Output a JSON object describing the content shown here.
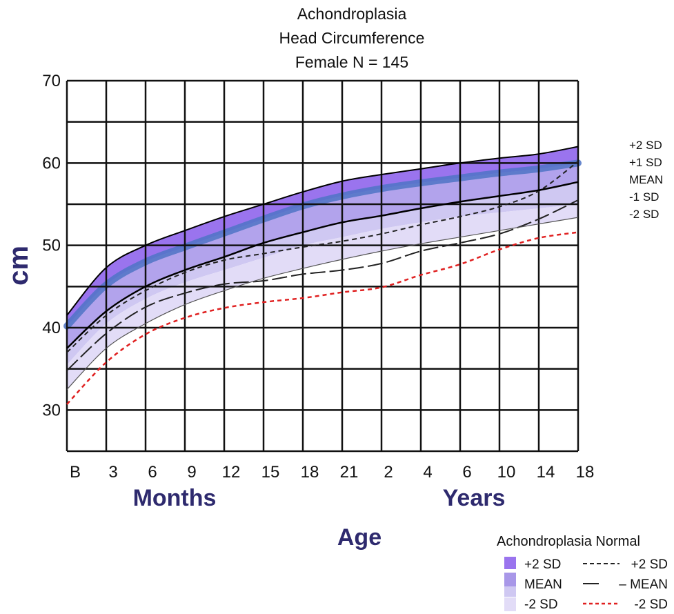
{
  "chart_data": {
    "type": "line",
    "title": [
      "Achondroplasia",
      "Head Circumference",
      "Female N = 145"
    ],
    "ylabel": "cm",
    "xlabel": "Age",
    "x_group_labels": [
      "Months",
      "Years"
    ],
    "x": [
      "B",
      "3",
      "6",
      "9",
      "12",
      "15",
      "18",
      "21",
      "2",
      "4",
      "6",
      "10",
      "14",
      "18"
    ],
    "yticks": [
      30,
      40,
      50,
      60,
      70
    ],
    "ylim": [
      25,
      70
    ],
    "grid": true,
    "curve_labels": [
      "+2 SD",
      "+1 SD",
      "MEAN",
      "-1 SD",
      "-2 SD"
    ],
    "achondroplasia_series": [
      {
        "name": "+2 SD",
        "values": [
          41.5,
          47.3,
          50.0,
          51.8,
          53.5,
          55.0,
          56.5,
          57.8,
          58.6,
          59.3,
          60.0,
          60.6,
          61.1,
          62.0
        ]
      },
      {
        "name": "+1 SD",
        "values": [
          40.2,
          45.2,
          48.0,
          49.8,
          51.5,
          53.2,
          54.8,
          56.0,
          56.9,
          57.6,
          58.2,
          58.8,
          59.3,
          60.0
        ]
      },
      {
        "name": "MEAN",
        "values": [
          37.5,
          42.0,
          45.0,
          47.0,
          48.6,
          50.3,
          51.6,
          52.8,
          53.6,
          54.5,
          55.3,
          56.0,
          56.7,
          57.7
        ]
      },
      {
        "name": "-1 SD",
        "values": [
          35.5,
          40.5,
          43.5,
          45.5,
          47.0,
          48.5,
          50.0,
          51.0,
          52.0,
          52.8,
          53.5,
          54.0,
          54.5,
          55.0
        ]
      },
      {
        "name": "-2 SD",
        "values": [
          32.5,
          37.5,
          40.5,
          42.8,
          44.5,
          46.0,
          47.2,
          48.3,
          49.3,
          50.2,
          51.0,
          51.8,
          52.6,
          53.4
        ]
      }
    ],
    "normal_series": [
      {
        "name": "+2 SD",
        "values": [
          37.0,
          41.5,
          44.5,
          46.7,
          48.2,
          49.0,
          49.8,
          50.5,
          51.4,
          52.5,
          53.5,
          54.7,
          56.6,
          60.2
        ]
      },
      {
        "name": "MEAN",
        "values": [
          34.8,
          39.3,
          42.5,
          44.2,
          45.3,
          45.7,
          46.5,
          47.0,
          47.8,
          49.3,
          50.3,
          51.4,
          53.2,
          55.5
        ]
      },
      {
        "name": "-2 SD",
        "values": [
          30.7,
          35.8,
          39.2,
          41.2,
          42.4,
          43.1,
          43.6,
          44.3,
          44.9,
          46.4,
          47.7,
          49.5,
          50.9,
          51.6
        ]
      }
    ],
    "legend": {
      "title": "Achondroplasia Normal",
      "achondroplasia_items": [
        "+2 SD",
        "MEAN",
        "-2 SD"
      ],
      "normal_items": [
        "+2 SD",
        "– MEAN",
        "-2 SD"
      ],
      "placement": "bottom-right"
    },
    "colors": {
      "band_outer": "#9a74ee",
      "band_mid": "#b2a3ec",
      "band_inner": "#cfc8f2",
      "band_low": "#e2dcf7",
      "mean_band": "#4f74c6",
      "achon_line": "#000000",
      "normal_line": "#222222",
      "normal_low": "#e02020",
      "heading": "#2e2a6e"
    }
  }
}
